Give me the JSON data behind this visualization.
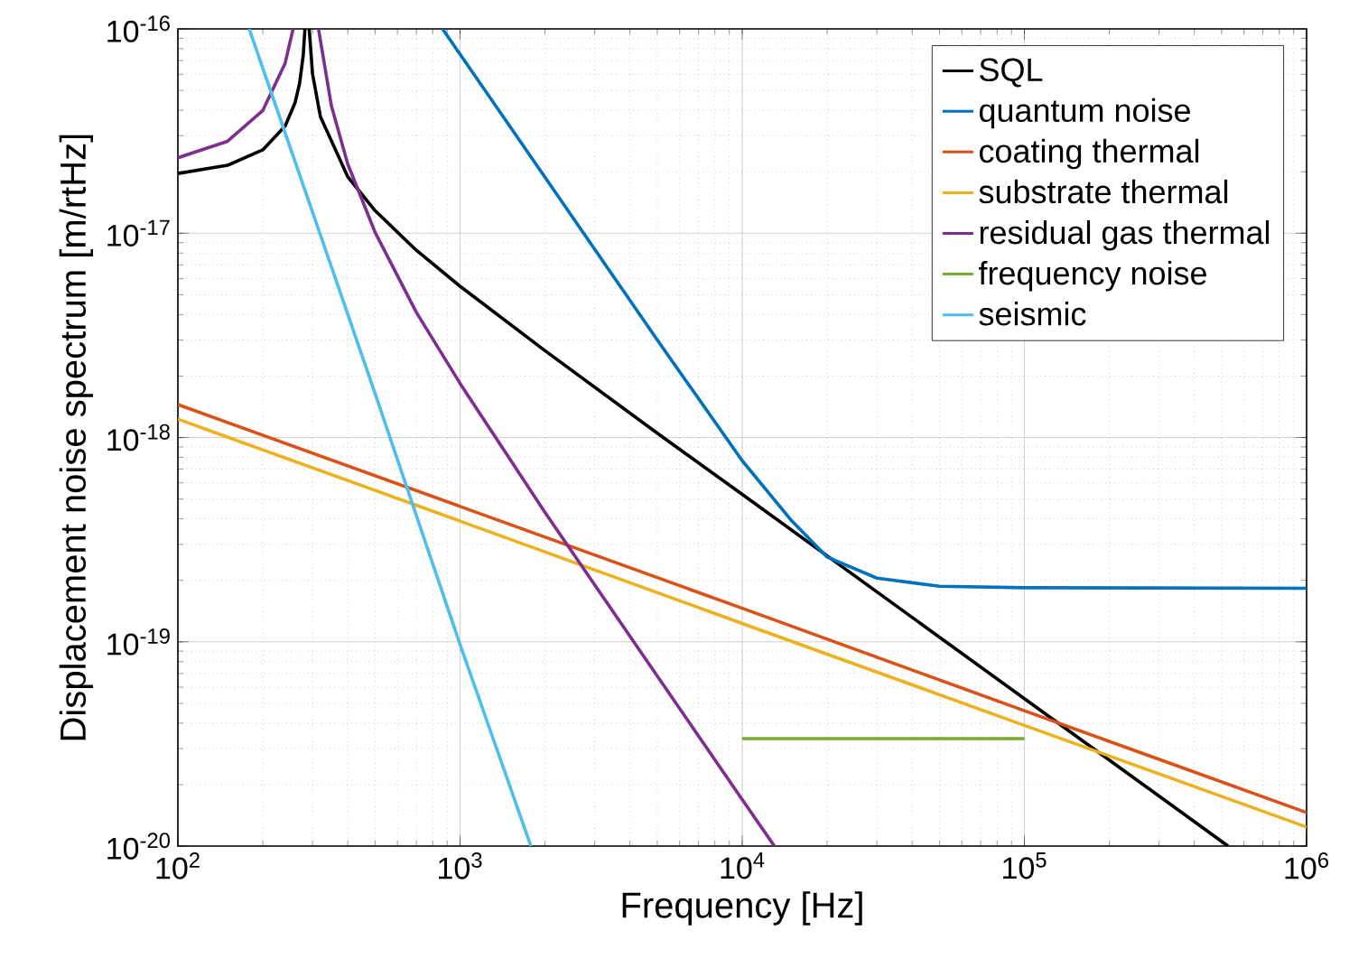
{
  "chart_data": {
    "type": "line",
    "log": "xy",
    "xlabel": "Frequency [Hz]",
    "ylabel": "Displacement noise spectrum [m/rtHz]",
    "xlim": [
      100,
      1000000
    ],
    "ylim": [
      1e-20,
      1e-16
    ],
    "xticks": [
      {
        "value": 100,
        "label": "10$^{2}$"
      },
      {
        "value": 1000,
        "label": "10$^{3}$"
      },
      {
        "value": 10000,
        "label": "10$^{4}$"
      },
      {
        "value": 100000,
        "label": "10$^{5}$"
      },
      {
        "value": 1000000,
        "label": "10$^{6}$"
      }
    ],
    "yticks": [
      {
        "value": 1e-20,
        "label": "10$^{-20}$"
      },
      {
        "value": 1e-19,
        "label": "10$^{-19}$"
      },
      {
        "value": 1e-18,
        "label": "10$^{-18}$"
      },
      {
        "value": 1e-17,
        "label": "10$^{-17}$"
      },
      {
        "value": 1e-16,
        "label": "10$^{-16}$"
      }
    ],
    "grid": true,
    "legend": "top right",
    "series": [
      {
        "name": "SQL",
        "color": "#000000",
        "x": [
          100,
          150,
          200,
          240,
          260,
          270,
          278,
          282,
          287,
          292,
          300,
          320,
          400,
          500,
          700,
          1000,
          2000,
          5000,
          10000,
          100000,
          527000
        ],
        "values": [
          1.96e-17,
          2.15e-17,
          2.56e-17,
          3.35e-17,
          4.34e-17,
          5.42e-17,
          7.39e-17,
          1e-16,
          null,
          1e-16,
          6.03e-17,
          3.72e-17,
          1.89e-17,
          1.29e-17,
          8.25e-18,
          5.5e-18,
          2.66e-18,
          1.05e-18,
          5.27e-19,
          5.27e-20,
          1e-20
        ]
      },
      {
        "name": "quantum noise",
        "color": "#0072bd",
        "x": [
          867,
          2000,
          5000,
          10000,
          15000,
          20000,
          30000,
          50000,
          100000,
          1000000
        ],
        "values": [
          1e-16,
          1.88e-17,
          3e-18,
          7.7e-19,
          3.9e-19,
          2.6e-19,
          2.05e-19,
          1.87e-19,
          1.84e-19,
          1.83e-19
        ]
      },
      {
        "name": "coating thermal",
        "color": "#d95319",
        "x": [
          100,
          1000,
          10000,
          100000,
          1000000
        ],
        "values": [
          1.45e-18,
          4.6e-19,
          1.46e-19,
          4.6e-20,
          1.46e-20
        ]
      },
      {
        "name": "substrate thermal",
        "color": "#edb120",
        "x": [
          100,
          1000,
          10000,
          100000,
          1000000
        ],
        "values": [
          1.23e-18,
          3.9e-19,
          1.23e-19,
          3.9e-20,
          1.24e-20
        ]
      },
      {
        "name": "residual gas thermal",
        "color": "#7e2f8e",
        "x": [
          100,
          150,
          200,
          240,
          256,
          287,
          315,
          350,
          400,
          500,
          700,
          1000,
          2000,
          5000,
          10000,
          13000
        ],
        "values": [
          2.34e-17,
          2.82e-17,
          3.99e-17,
          6.8e-17,
          1e-16,
          null,
          1e-16,
          4.2e-17,
          2.18e-17,
          1.01e-17,
          4.1e-18,
          1.84e-18,
          4.3e-19,
          6.8e-20,
          1.69e-20,
          1e-20
        ]
      },
      {
        "name": "frequency noise",
        "color": "#77ac30",
        "x": [
          10000,
          100000
        ],
        "values": [
          3.36e-20,
          3.36e-20
        ]
      },
      {
        "name": "seismic",
        "color": "#4dbeee",
        "x": [
          179,
          300,
          500,
          1000,
          1783
        ],
        "values": [
          1e-16,
          1.27e-17,
          1.64e-18,
          9.7e-20,
          1e-20
        ]
      }
    ]
  }
}
